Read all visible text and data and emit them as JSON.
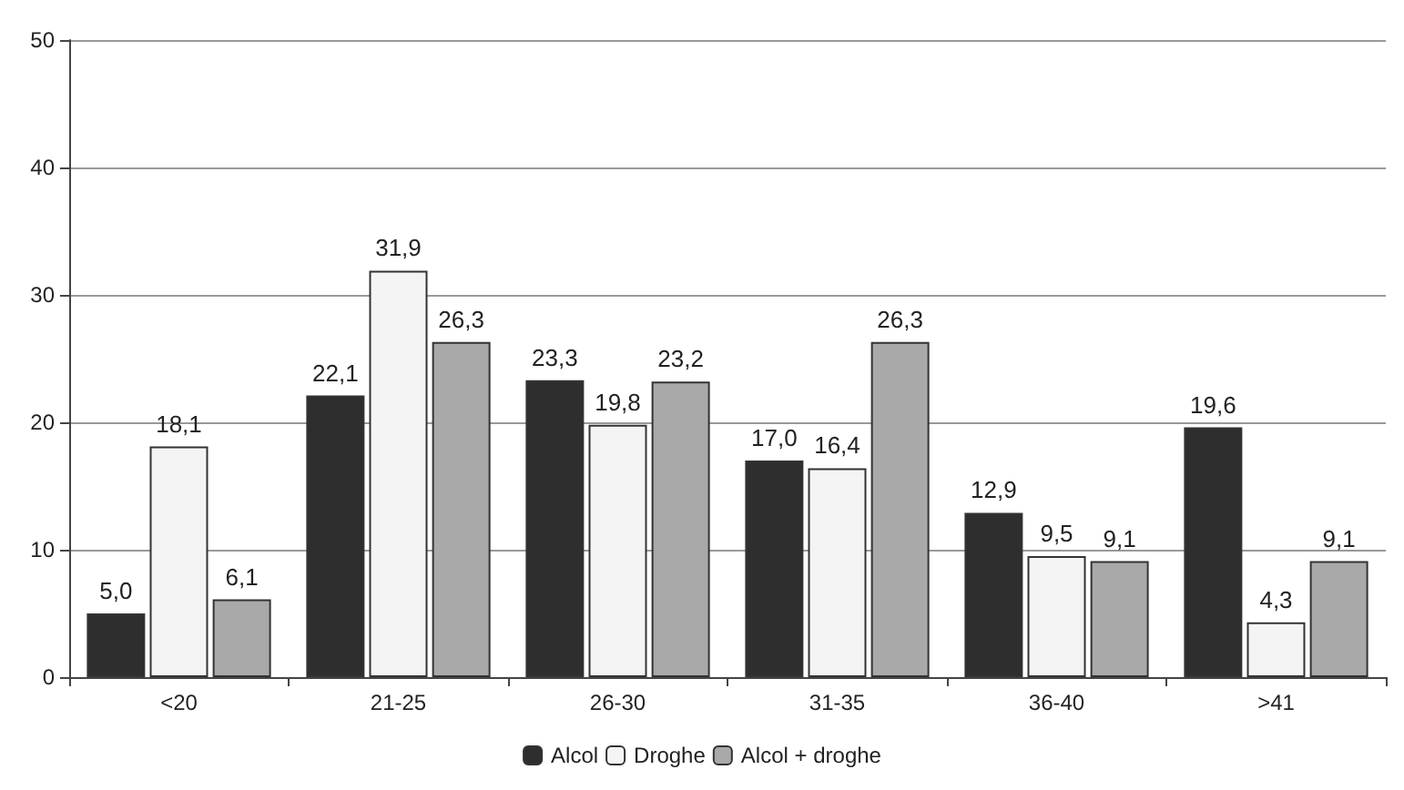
{
  "chart_data": {
    "type": "bar",
    "categories": [
      "<20",
      "21-25",
      "26-30",
      "31-35",
      "36-40",
      ">41"
    ],
    "series": [
      {
        "name": "Alcol",
        "color": "#2e2e2e",
        "values": [
          5.0,
          22.1,
          23.3,
          17.0,
          12.9,
          19.6
        ],
        "value_labels": [
          "5,0",
          "22,1",
          "23,3",
          "17,0",
          "12,9",
          "19,6"
        ]
      },
      {
        "name": "Droghe",
        "color": "#f4f4f4",
        "values": [
          18.1,
          31.9,
          19.8,
          16.4,
          9.5,
          4.3
        ],
        "value_labels": [
          "18,1",
          "31,9",
          "19,8",
          "16,4",
          "9,5",
          "4,3"
        ]
      },
      {
        "name": "Alcol + droghe",
        "color": "#a9a9a9",
        "values": [
          6.1,
          26.3,
          23.2,
          26.3,
          9.1,
          9.1
        ],
        "value_labels": [
          "6,1",
          "26,3",
          "23,2",
          "26,3",
          "9,1",
          "9,1"
        ]
      }
    ],
    "ylim": [
      0,
      50
    ],
    "yticks": [
      0,
      10,
      20,
      30,
      40,
      50
    ],
    "grid": "y",
    "legend": "bottom"
  }
}
